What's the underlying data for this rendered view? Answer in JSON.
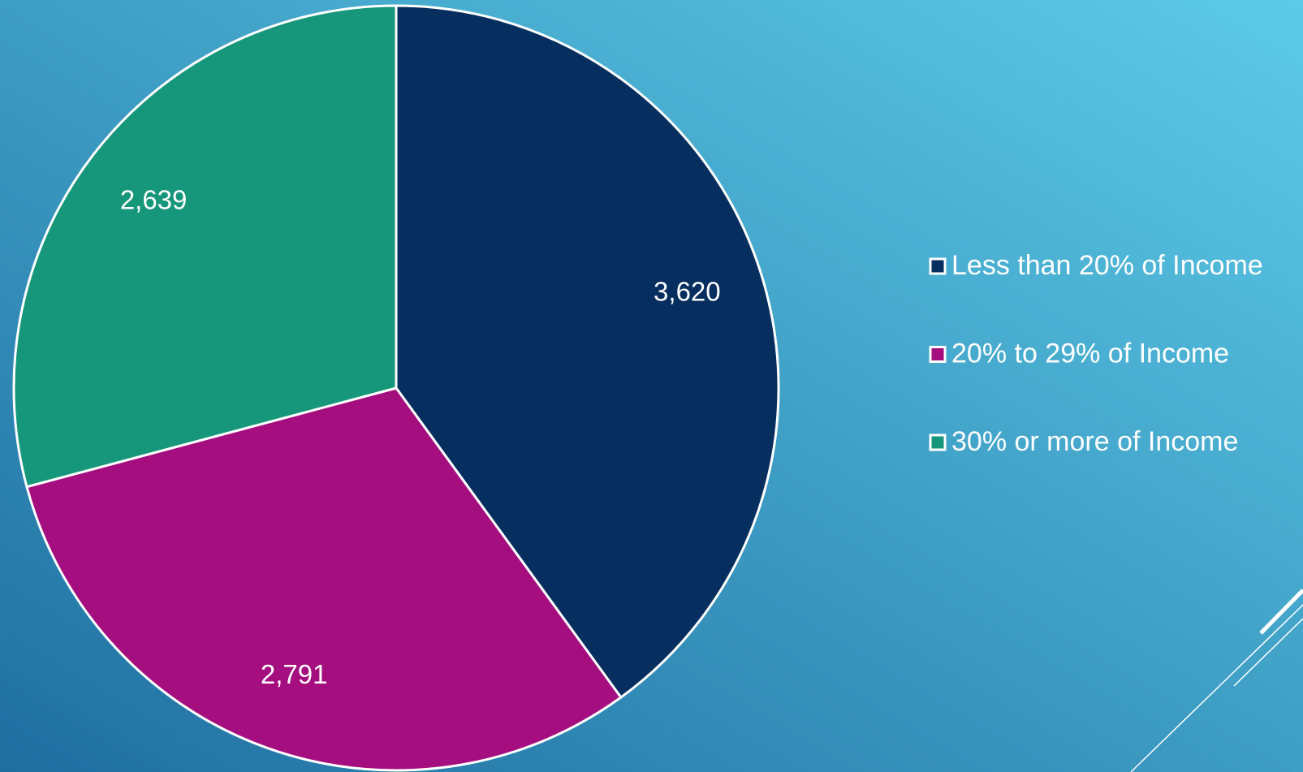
{
  "chart_data": {
    "type": "pie",
    "categories": [
      "Less than 20% of Income",
      "20% to 29% of Income",
      "30% or more of Income"
    ],
    "values": [
      3620,
      2791,
      2639
    ],
    "value_labels": [
      "3,620",
      "2,791",
      "2,639"
    ],
    "colors": [
      "#062e5f",
      "#a50e7e",
      "#16967a"
    ],
    "legend": "right"
  }
}
